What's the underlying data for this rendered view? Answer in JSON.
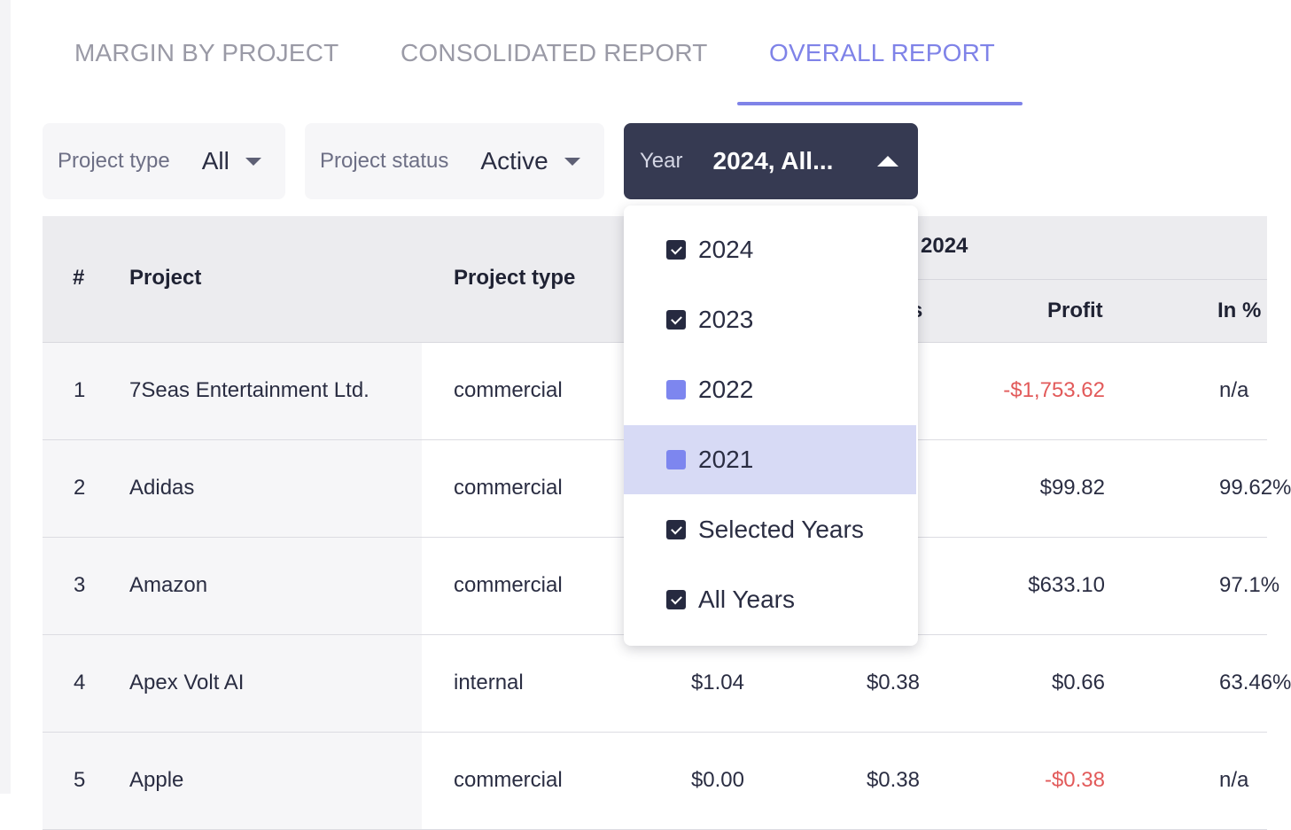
{
  "tabs": [
    {
      "label": "MARGIN BY PROJECT",
      "active": false
    },
    {
      "label": "CONSOLIDATED REPORT",
      "active": false
    },
    {
      "label": "OVERALL REPORT",
      "active": true
    }
  ],
  "filters": {
    "project_type": {
      "label": "Project type",
      "value": "All"
    },
    "project_status": {
      "label": "Project status",
      "value": "Active"
    },
    "year": {
      "label": "Year",
      "value": "2024, All..."
    }
  },
  "table": {
    "headers": {
      "num": "#",
      "project": "Project",
      "project_type": "Project type",
      "year_group": "2024",
      "partial_col": "s",
      "profit": "Profit",
      "in_pct": "In %"
    },
    "rows": [
      {
        "num": "1",
        "project": "7Seas Entertainment Ltd.",
        "type": "commercial",
        "c1": "",
        "c2": "",
        "profit": "-$1,753.62",
        "profit_negative": true,
        "in_pct": "n/a"
      },
      {
        "num": "2",
        "project": "Adidas",
        "type": "commercial",
        "c1": "",
        "c2": "",
        "profit": "$99.82",
        "profit_negative": false,
        "in_pct": "99.62%"
      },
      {
        "num": "3",
        "project": "Amazon",
        "type": "commercial",
        "c1": "",
        "c2": "",
        "profit": "$633.10",
        "profit_negative": false,
        "in_pct": "97.1%"
      },
      {
        "num": "4",
        "project": "Apex Volt AI",
        "type": "internal",
        "c1": "$1.04",
        "c2": "$0.38",
        "profit": "$0.66",
        "profit_negative": false,
        "in_pct": "63.46%"
      },
      {
        "num": "5",
        "project": "Apple",
        "type": "commercial",
        "c1": "$0.00",
        "c2": "$0.38",
        "profit": "-$0.38",
        "profit_negative": true,
        "in_pct": "n/a"
      }
    ]
  },
  "year_dropdown": {
    "options": [
      {
        "label": "2024",
        "checked": true,
        "highlighted": false
      },
      {
        "label": "2023",
        "checked": true,
        "highlighted": false
      },
      {
        "label": "2022",
        "checked": false,
        "highlighted": false
      },
      {
        "label": "2021",
        "checked": false,
        "highlighted": true
      },
      {
        "label": "Selected Years",
        "checked": true,
        "highlighted": false
      },
      {
        "label": "All Years",
        "checked": true,
        "highlighted": false
      }
    ]
  },
  "colors": {
    "accent": "#7f83e8",
    "dark": "#363a52",
    "negative": "#e25a5a",
    "highlight": "#d7daf5",
    "checkbox_unchecked": "#7d86ef"
  }
}
